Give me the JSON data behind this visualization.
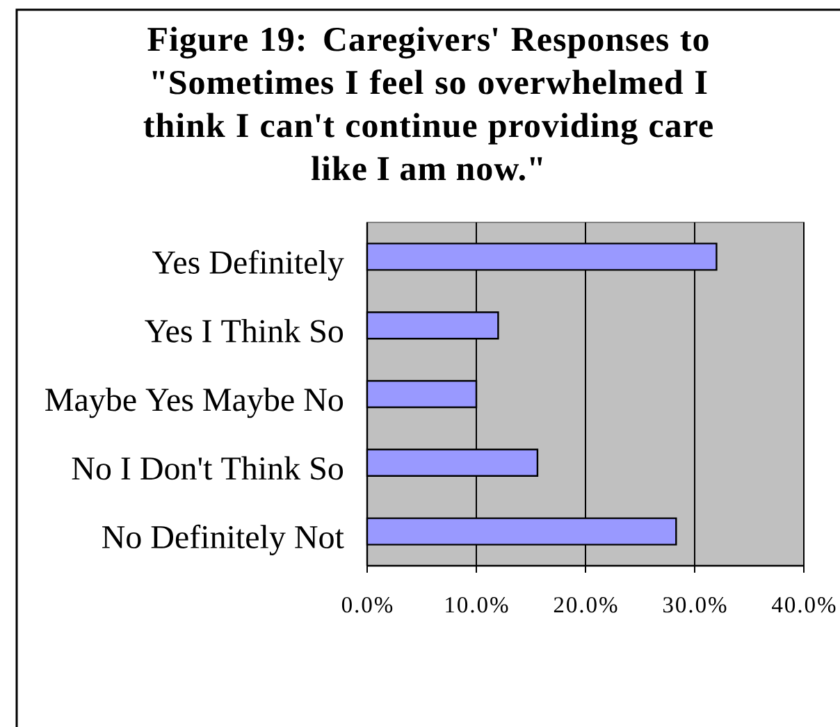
{
  "chart_data": {
    "type": "bar",
    "orientation": "horizontal",
    "title": "Figure 19: Caregivers' Responses to \"Sometimes I feel so overwhelmed I think I can't continue providing care like I am now.\"",
    "categories": [
      "Yes Definitely",
      "Yes I Think So",
      "Maybe Yes Maybe No",
      "No I Don't Think So",
      "No Definitely Not"
    ],
    "values": [
      32.0,
      12.0,
      10.0,
      15.6,
      28.3
    ],
    "color": "#9999ff",
    "xlim": [
      0,
      40
    ],
    "xticks": [
      {
        "value": 0,
        "label": "0.0%"
      },
      {
        "value": 10,
        "label": "10.0%"
      },
      {
        "value": 20,
        "label": "20.0%"
      },
      {
        "value": 30,
        "label": "30.0%"
      },
      {
        "value": 40,
        "label": "40.0%"
      }
    ],
    "grid": "x"
  }
}
